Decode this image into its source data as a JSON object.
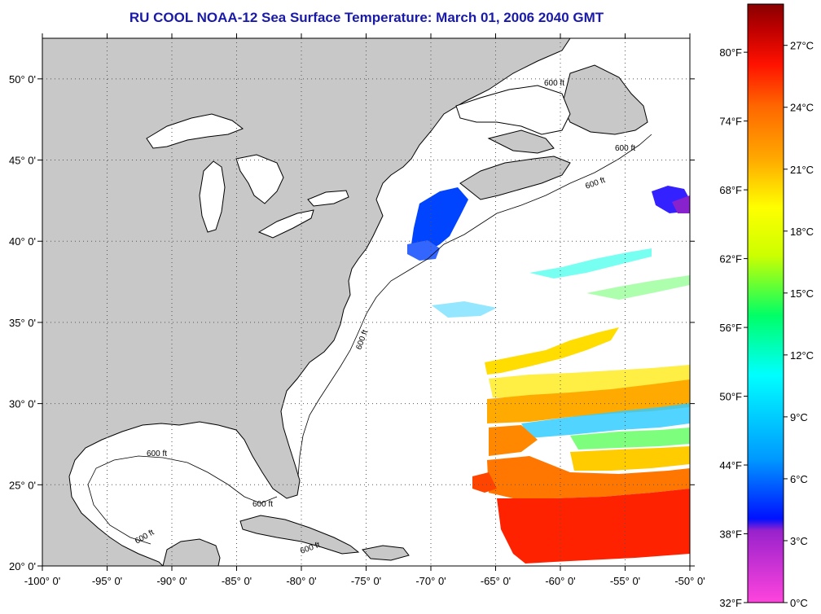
{
  "title": "RU COOL  NOAA-12  Sea Surface Temperature:  March 01, 2006 2040 GMT",
  "map": {
    "lon_labels": [
      "-100° 0'",
      "-95° 0'",
      "-90° 0'",
      "-85° 0'",
      "-80° 0'",
      "-75° 0'",
      "-70° 0'",
      "-65° 0'",
      "-60° 0'",
      "-55° 0'",
      "-50° 0'"
    ],
    "lon_values": [
      -100,
      -95,
      -90,
      -85,
      -80,
      -75,
      -70,
      -65,
      -60,
      -55,
      -50
    ],
    "lat_labels": [
      "20° 0'",
      "25° 0'",
      "30° 0'",
      "35° 0'",
      "40° 0'",
      "45° 0'",
      "50° 0'"
    ],
    "lat_values": [
      20,
      25,
      30,
      35,
      40,
      45,
      50
    ],
    "lon_range": [
      -100,
      -50
    ],
    "lat_range": [
      20,
      52.5
    ],
    "isobath_label": "600 ft",
    "grid": "dotted",
    "land_color": "#c8c8c8",
    "ocean_color": "#ffffff"
  },
  "colorbar": {
    "fahrenheit_labels": [
      "80°F",
      "74°F",
      "68°F",
      "62°F",
      "56°F",
      "50°F",
      "44°F",
      "38°F",
      "32°F"
    ],
    "celsius_labels": [
      "27°C",
      "24°C",
      "21°C",
      "18°C",
      "15°C",
      "12°C",
      "9°C",
      "6°C",
      "3°C",
      "0°C"
    ],
    "range_celsius": [
      0,
      29
    ],
    "colors": [
      "#ff44dd",
      "#9922cc",
      "#0011ff",
      "#0099ff",
      "#00ffff",
      "#00ff66",
      "#ccff00",
      "#ffff00",
      "#ffaa00",
      "#ff6600",
      "#ff1100",
      "#bb0000",
      "#880000"
    ]
  }
}
